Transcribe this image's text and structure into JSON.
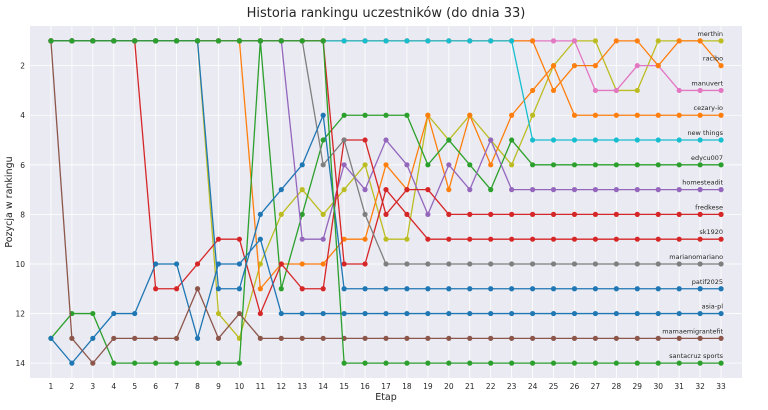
{
  "chart_data": {
    "type": "line",
    "title": "Historia rankingu uczestników (do dnia 33)",
    "xlabel": "Etap",
    "ylabel": "Pozycja w rankingu",
    "x": [
      1,
      2,
      3,
      4,
      5,
      6,
      7,
      8,
      9,
      10,
      11,
      12,
      13,
      14,
      15,
      16,
      17,
      18,
      19,
      20,
      21,
      22,
      23,
      24,
      25,
      26,
      27,
      28,
      29,
      30,
      31,
      32,
      33
    ],
    "xlim": [
      0,
      34
    ],
    "ylim": [
      14.6,
      0.4
    ],
    "yticks": [
      2,
      4,
      6,
      8,
      10,
      12,
      14
    ],
    "y_inverted": true,
    "grid": true,
    "series": [
      {
        "name": "merthin",
        "color": "#bcbd22",
        "values": [
          1,
          1,
          1,
          1,
          1,
          1,
          1,
          1,
          12,
          13,
          10,
          8,
          7,
          8,
          7,
          6,
          9,
          9,
          4,
          5,
          4,
          5,
          6,
          4,
          2,
          1,
          1,
          3,
          3,
          1,
          1,
          1,
          1
        ]
      },
      {
        "name": "cezary-io",
        "color": "#ff7f0e",
        "values": [
          1,
          1,
          1,
          1,
          1,
          1,
          1,
          1,
          1,
          1,
          11,
          10,
          10,
          10,
          9,
          9,
          6,
          7,
          4,
          7,
          4,
          6,
          4,
          3,
          2,
          4,
          4,
          4,
          4,
          4,
          4,
          4,
          4
        ]
      },
      {
        "name": "manuvert",
        "color": "#e377c2",
        "values": [
          1,
          1,
          1,
          1,
          1,
          1,
          1,
          1,
          1,
          1,
          1,
          1,
          1,
          1,
          1,
          1,
          1,
          1,
          1,
          1,
          1,
          1,
          1,
          1,
          1,
          1,
          3,
          3,
          2,
          2,
          3,
          3,
          3
        ]
      },
      {
        "name": "racibo",
        "color": "#ff7f0e",
        "values": [
          1,
          1,
          1,
          1,
          1,
          1,
          1,
          1,
          1,
          1,
          1,
          1,
          1,
          1,
          1,
          1,
          1,
          1,
          1,
          1,
          1,
          1,
          1,
          1,
          3,
          2,
          2,
          1,
          1,
          2,
          1,
          1,
          2
        ]
      },
      {
        "name": "new things",
        "color": "#17becf",
        "values": [
          1,
          1,
          1,
          1,
          1,
          1,
          1,
          1,
          1,
          1,
          1,
          1,
          1,
          1,
          1,
          1,
          1,
          1,
          1,
          1,
          1,
          1,
          1,
          5,
          5,
          5,
          5,
          5,
          5,
          5,
          5,
          5,
          5
        ]
      },
      {
        "name": "edycu007",
        "color": "#2ca02c",
        "values": [
          13,
          12,
          12,
          14,
          14,
          14,
          14,
          14,
          14,
          14,
          1,
          11,
          8,
          5,
          4,
          4,
          4,
          4,
          6,
          5,
          6,
          7,
          5,
          6,
          6,
          6,
          6,
          6,
          6,
          6,
          6,
          6,
          6
        ]
      },
      {
        "name": "homesteadit",
        "color": "#9467bd",
        "values": [
          1,
          1,
          1,
          1,
          1,
          1,
          1,
          1,
          1,
          1,
          1,
          1,
          9,
          9,
          6,
          7,
          5,
          6,
          8,
          6,
          7,
          5,
          7,
          7,
          7,
          7,
          7,
          7,
          7,
          7,
          7,
          7,
          7
        ]
      },
      {
        "name": "fredkese",
        "color": "#d62728",
        "values": [
          1,
          1,
          1,
          1,
          1,
          11,
          11,
          10,
          9,
          9,
          12,
          10,
          11,
          11,
          5,
          5,
          8,
          7,
          7,
          8,
          8,
          8,
          8,
          8,
          8,
          8,
          8,
          8,
          8,
          8,
          8,
          8,
          8
        ]
      },
      {
        "name": "sk1920",
        "color": "#d62728",
        "values": [
          1,
          1,
          1,
          1,
          1,
          1,
          1,
          1,
          1,
          1,
          1,
          1,
          1,
          1,
          10,
          10,
          7,
          8,
          9,
          9,
          9,
          9,
          9,
          9,
          9,
          9,
          9,
          9,
          9,
          9,
          9,
          9,
          9
        ]
      },
      {
        "name": "marianomariano",
        "color": "#7f7f7f",
        "values": [
          1,
          1,
          1,
          1,
          1,
          1,
          1,
          1,
          1,
          1,
          1,
          1,
          1,
          6,
          5,
          8,
          10,
          10,
          10,
          10,
          10,
          10,
          10,
          10,
          10,
          10,
          10,
          10,
          10,
          10,
          10,
          10,
          10
        ]
      },
      {
        "name": "patif2025",
        "color": "#1f77b4",
        "values": [
          1,
          1,
          1,
          1,
          1,
          1,
          1,
          1,
          11,
          11,
          8,
          7,
          6,
          4,
          11,
          11,
          11,
          11,
          11,
          11,
          11,
          11,
          11,
          11,
          11,
          11,
          11,
          11,
          11,
          11,
          11,
          11,
          11
        ]
      },
      {
        "name": "asia-pl",
        "color": "#1f77b4",
        "values": [
          13,
          14,
          13,
          12,
          12,
          10,
          10,
          13,
          10,
          10,
          9,
          12,
          12,
          12,
          12,
          12,
          12,
          12,
          12,
          12,
          12,
          12,
          12,
          12,
          12,
          12,
          12,
          12,
          12,
          12,
          12,
          12,
          12
        ]
      },
      {
        "name": "mamaemigrantefit",
        "color": "#8c564b",
        "values": [
          1,
          13,
          14,
          13,
          13,
          13,
          13,
          11,
          13,
          12,
          13,
          13,
          13,
          13,
          13,
          13,
          13,
          13,
          13,
          13,
          13,
          13,
          13,
          13,
          13,
          13,
          13,
          13,
          13,
          13,
          13,
          13,
          13
        ]
      },
      {
        "name": "santacruz sports",
        "color": "#2ca02c",
        "values": [
          1,
          1,
          1,
          1,
          1,
          1,
          1,
          1,
          1,
          1,
          1,
          1,
          1,
          1,
          14,
          14,
          14,
          14,
          14,
          14,
          14,
          14,
          14,
          14,
          14,
          14,
          14,
          14,
          14,
          14,
          14,
          14,
          14
        ]
      }
    ]
  }
}
